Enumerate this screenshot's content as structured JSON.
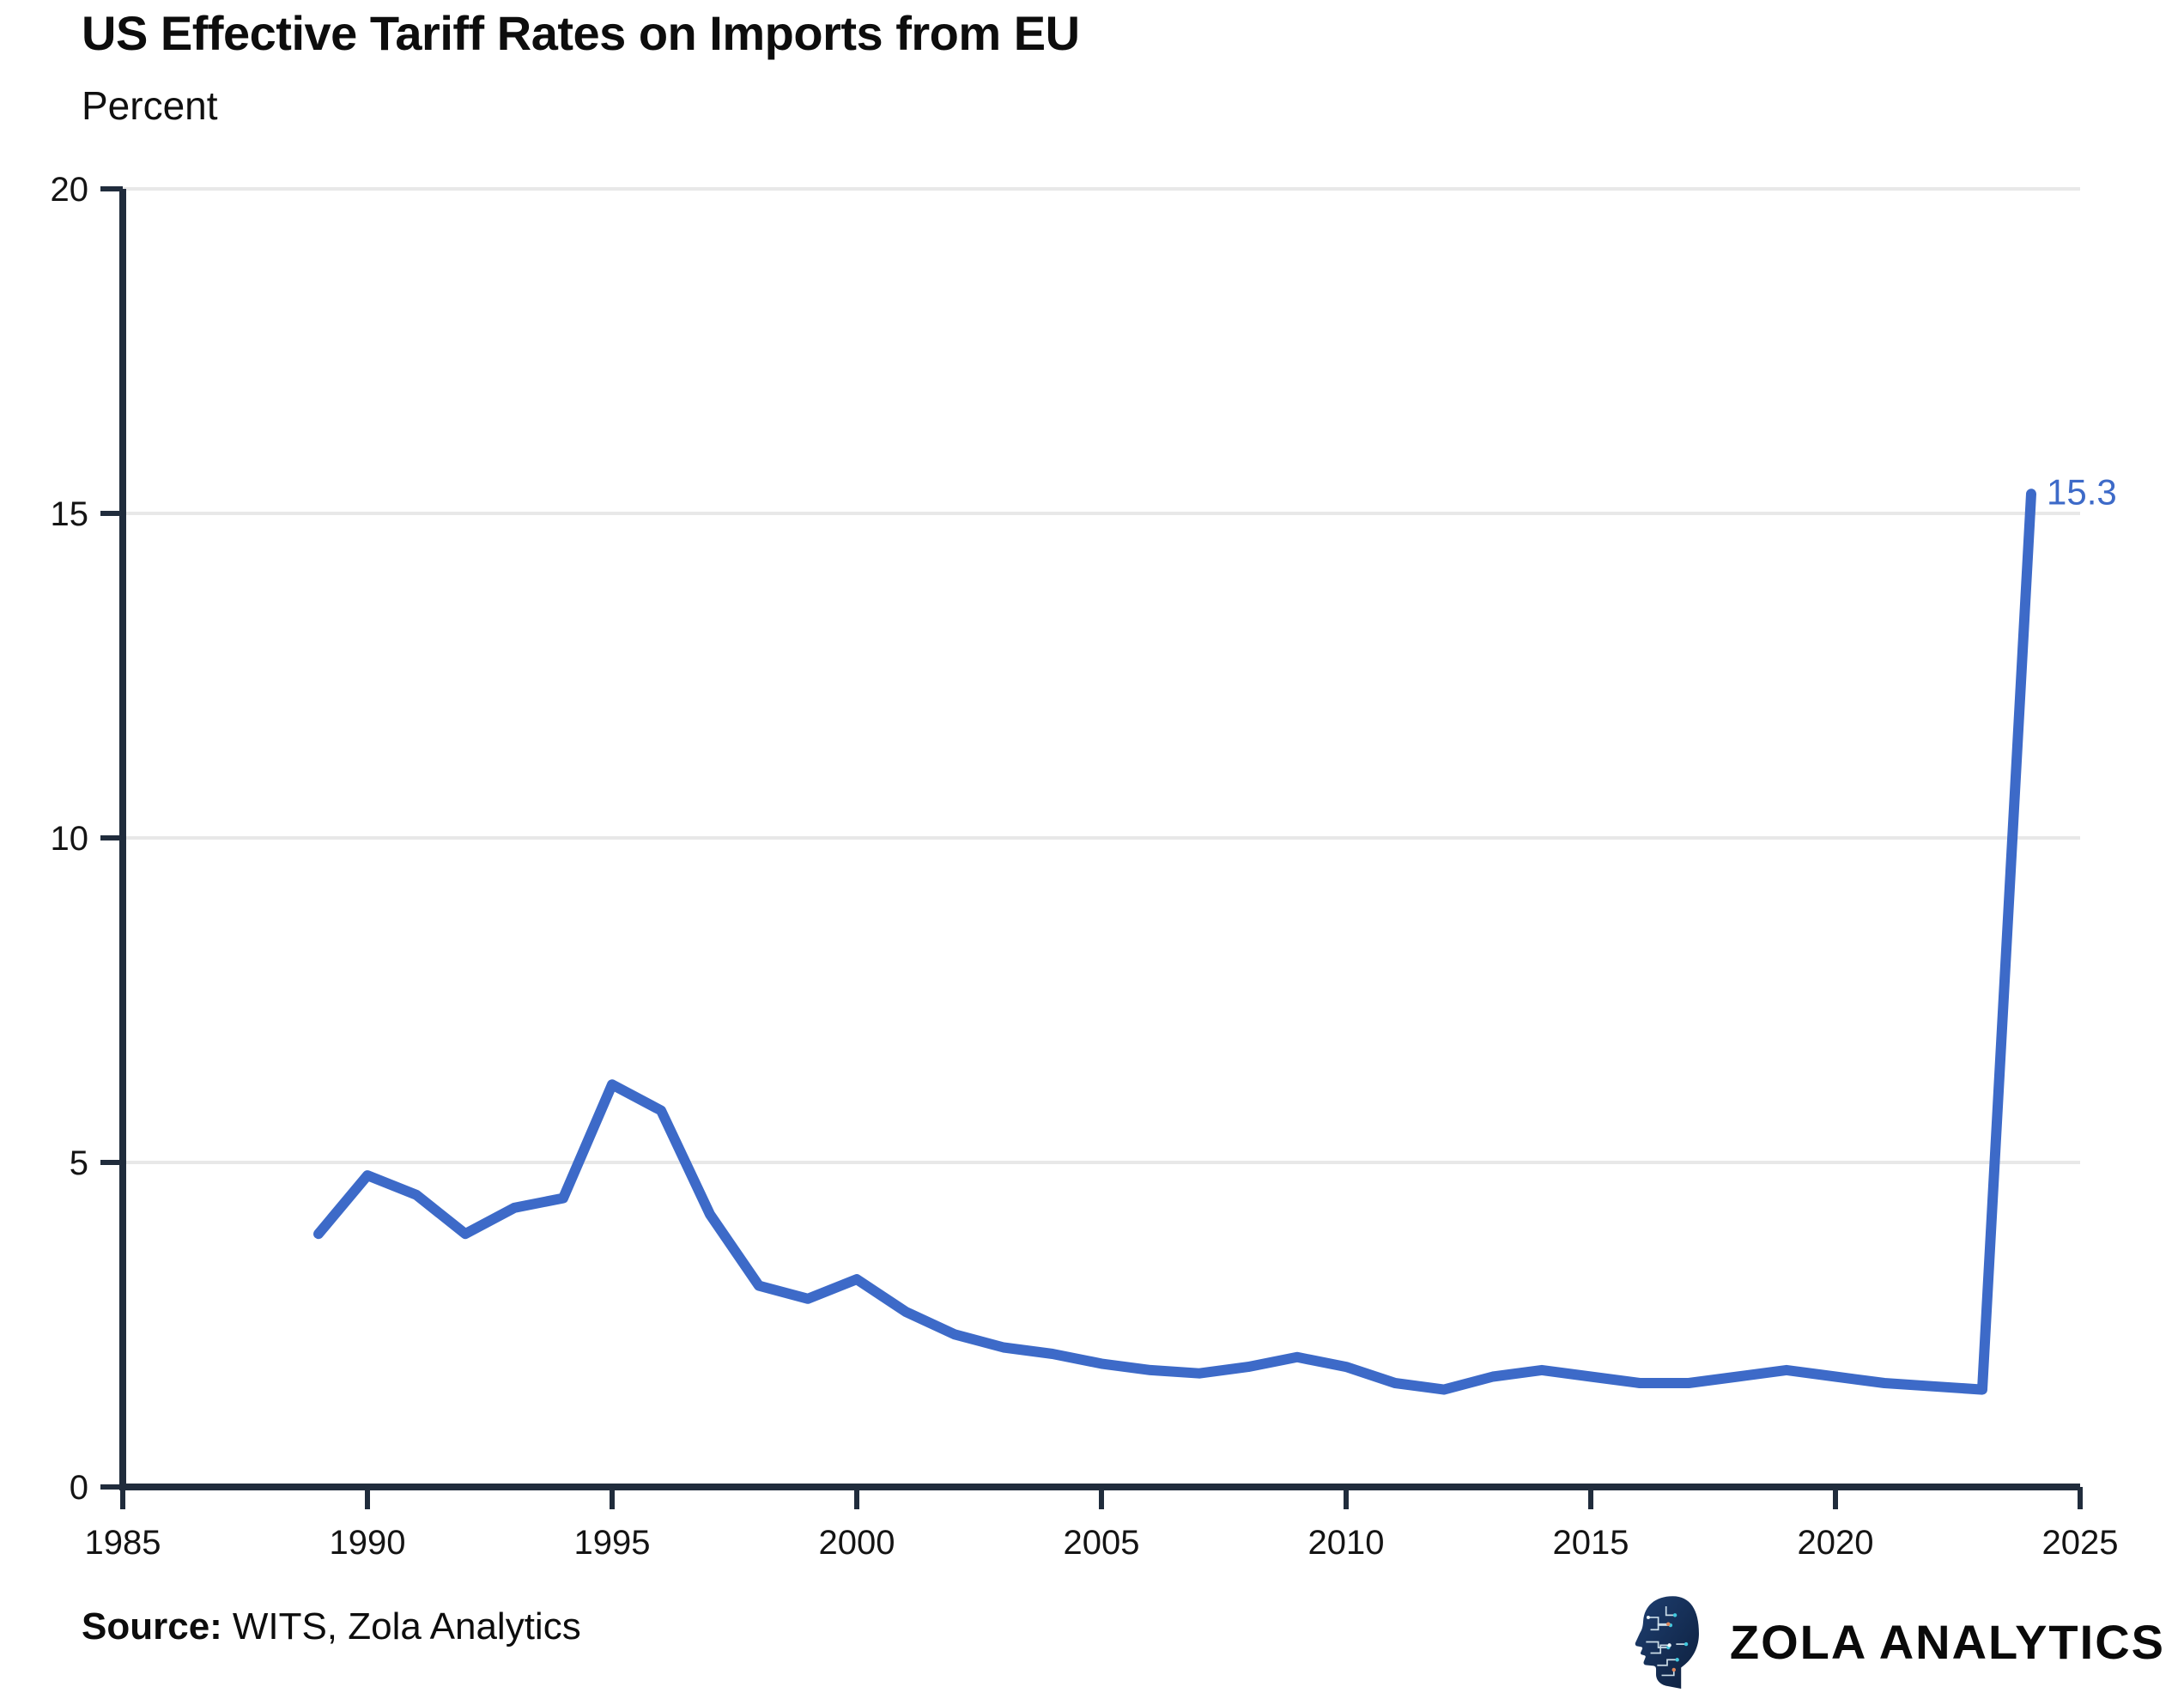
{
  "header": {
    "title": "US Effective Tariff Rates on Imports from EU",
    "subtitle": "Percent"
  },
  "chart_data": {
    "type": "line",
    "title": "US Effective Tariff Rates on Imports from EU",
    "ylabel": "Percent",
    "xlabel": "",
    "series": [
      {
        "name": "US effective tariff rate on imports from EU",
        "x": [
          1989,
          1990,
          1991,
          1992,
          1993,
          1994,
          1995,
          1996,
          1997,
          1998,
          1999,
          2000,
          2001,
          2002,
          2003,
          2004,
          2005,
          2006,
          2007,
          2008,
          2009,
          2010,
          2011,
          2012,
          2013,
          2014,
          2015,
          2016,
          2017,
          2018,
          2019,
          2020,
          2021,
          2022,
          2023,
          2024
        ],
        "values": [
          3.9,
          4.8,
          4.5,
          3.9,
          4.3,
          4.45,
          6.2,
          5.8,
          4.2,
          3.1,
          2.9,
          3.2,
          2.7,
          2.35,
          2.15,
          2.05,
          1.9,
          1.8,
          1.75,
          1.85,
          2.0,
          1.85,
          1.6,
          1.5,
          1.7,
          1.8,
          1.7,
          1.6,
          1.6,
          1.7,
          1.8,
          1.7,
          1.6,
          1.55,
          1.5,
          15.3
        ]
      }
    ],
    "end_label": "15.3",
    "x_ticks": [
      1985,
      1990,
      1995,
      2000,
      2005,
      2010,
      2015,
      2020,
      2025
    ],
    "y_ticks": [
      0,
      5,
      10,
      15,
      20
    ],
    "xlim": [
      1985,
      2025
    ],
    "ylim": [
      0,
      20
    ],
    "grid": "horizontal-only",
    "legend": "none",
    "colors": {
      "line": "#3D6AC8",
      "axis": "#202C3C",
      "grid": "#E8E8E8",
      "tick_label": "#141414",
      "end_label": "#3D6AC8"
    }
  },
  "footer": {
    "source_label": "Source:",
    "source_text": "WITS, Zola Analytics",
    "brand": "ZOLA ANALYTICS"
  }
}
